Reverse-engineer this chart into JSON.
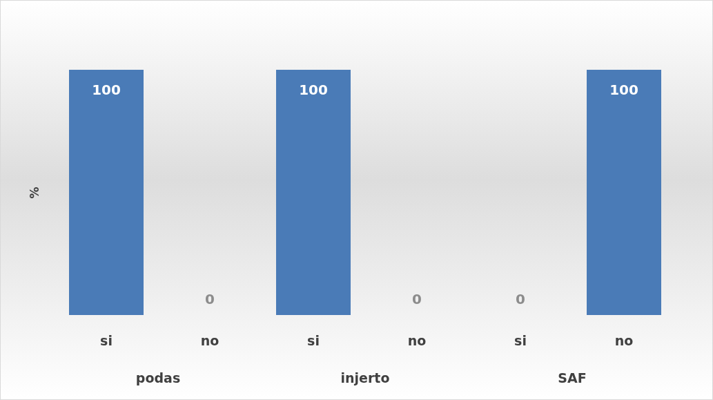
{
  "chart_data": {
    "type": "bar",
    "ylabel": "%",
    "categories": [
      "si",
      "no",
      "si",
      "no",
      "si",
      "no"
    ],
    "values": [
      100,
      0,
      100,
      0,
      0,
      100
    ],
    "color": "#4a7bb7",
    "data_labels": true,
    "tick_labels": "x",
    "grid": false,
    "annotations": [
      "podas",
      "injerto",
      "SAF"
    ]
  }
}
